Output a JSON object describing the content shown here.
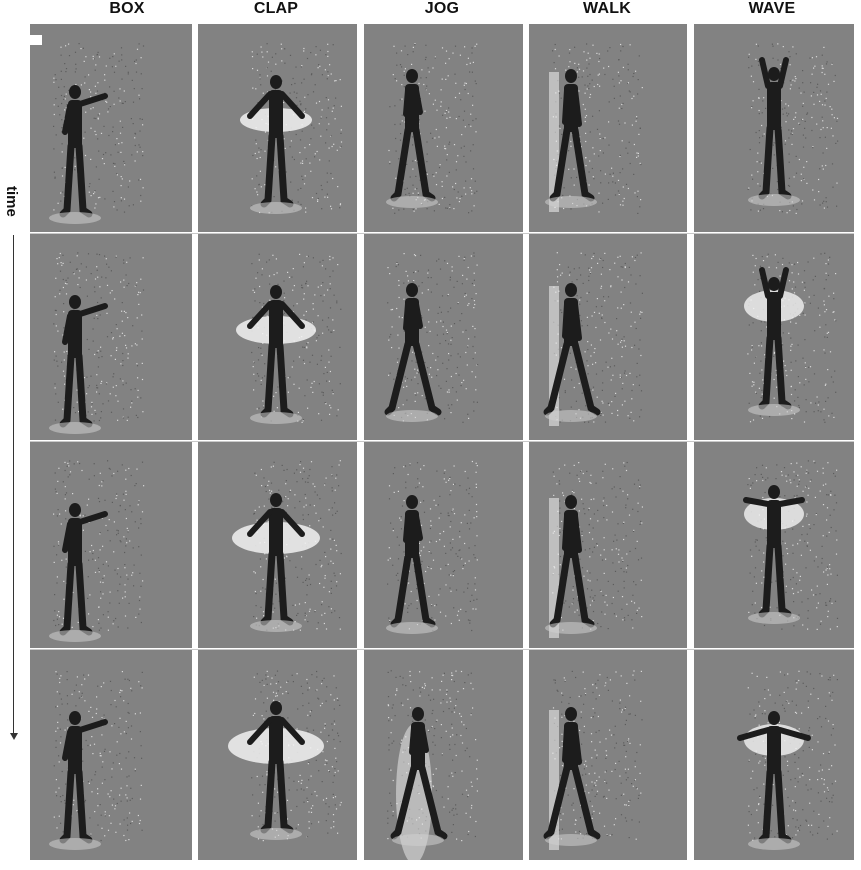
{
  "columns": [
    "BOX",
    "CLAP",
    "JOG",
    "WALK",
    "WAVE"
  ],
  "axis_label": "time",
  "colors": {
    "background": "#828282",
    "figure_dark": "#1c1c1c",
    "highlight": "#f2f2f2"
  }
}
